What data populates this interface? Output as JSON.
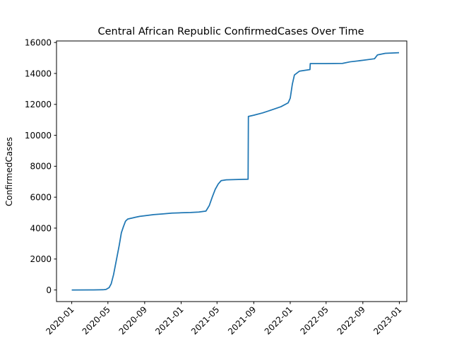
{
  "chart_data": {
    "type": "line",
    "title": "Central African Republic  ConfirmedCases Over Time",
    "xlabel": "",
    "ylabel": "ConfirmedCases",
    "xlim": [
      "2019-11-11",
      "2023-01-26"
    ],
    "ylim": [
      -750,
      16100
    ],
    "grid": false,
    "x_ticks": [
      "2020-01",
      "2020-05",
      "2020-09",
      "2021-01",
      "2021-05",
      "2021-09",
      "2022-01",
      "2022-05",
      "2022-09",
      "2023-01"
    ],
    "y_ticks": [
      0,
      2000,
      4000,
      6000,
      8000,
      10000,
      12000,
      14000,
      16000
    ],
    "y_tick_labels": [
      "0",
      "2000",
      "4000",
      "6000",
      "8000",
      "10000",
      "12000",
      "14000",
      "16000"
    ],
    "colors": {
      "series": "#1f77b4"
    },
    "series": [
      {
        "name": "",
        "x": [
          "2020-01-01",
          "2020-03-14",
          "2020-04-15",
          "2020-04-25",
          "2020-05-05",
          "2020-05-12",
          "2020-05-20",
          "2020-05-26",
          "2020-06-01",
          "2020-06-08",
          "2020-06-15",
          "2020-06-22",
          "2020-06-29",
          "2020-07-06",
          "2020-07-14",
          "2020-07-21",
          "2020-08-01",
          "2020-08-15",
          "2020-09-01",
          "2020-10-01",
          "2020-11-01",
          "2020-12-01",
          "2021-01-01",
          "2021-02-01",
          "2021-03-01",
          "2021-03-25",
          "2021-04-05",
          "2021-04-15",
          "2021-04-25",
          "2021-05-05",
          "2021-05-15",
          "2021-06-01",
          "2021-07-01",
          "2021-08-13",
          "2021-08-14",
          "2021-09-01",
          "2021-10-01",
          "2021-11-01",
          "2021-12-01",
          "2021-12-25",
          "2022-01-01",
          "2022-01-08",
          "2022-01-15",
          "2022-02-01",
          "2022-03-08",
          "2022-03-09",
          "2022-05-01",
          "2022-06-25",
          "2022-07-20",
          "2022-09-01",
          "2022-10-10",
          "2022-10-20",
          "2022-11-15",
          "2022-12-31"
        ],
        "y": [
          0,
          3,
          12,
          40,
          150,
          400,
          1000,
          1600,
          2200,
          2900,
          3700,
          4100,
          4450,
          4580,
          4620,
          4650,
          4700,
          4760,
          4800,
          4870,
          4920,
          4970,
          4990,
          5010,
          5040,
          5100,
          5450,
          6000,
          6500,
          6850,
          7070,
          7120,
          7140,
          7160,
          11220,
          11300,
          11450,
          11650,
          11850,
          12100,
          12400,
          13300,
          13900,
          14150,
          14250,
          14640,
          14640,
          14650,
          14750,
          14850,
          14950,
          15200,
          15300,
          15340
        ]
      }
    ]
  }
}
